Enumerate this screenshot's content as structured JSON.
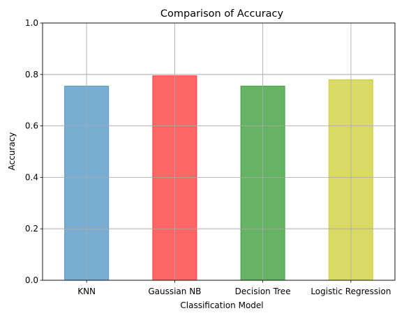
{
  "chart_data": {
    "type": "bar",
    "title": "Comparison of Accuracy",
    "xlabel": "Classification Model",
    "ylabel": "Accuracy",
    "categories": [
      "KNN",
      "Gaussian NB",
      "Decision Tree",
      "Logistic Regression"
    ],
    "values": [
      0.755,
      0.795,
      0.755,
      0.78
    ],
    "bar_colors": [
      "#1f77b4",
      "#ff0000",
      "#008000",
      "#bfbf00"
    ],
    "bar_alpha": 0.6,
    "ylim": [
      0,
      1.0
    ],
    "yticks": [
      "0.0",
      "0.2",
      "0.4",
      "0.6",
      "0.8",
      "1.0"
    ],
    "grid": true
  }
}
